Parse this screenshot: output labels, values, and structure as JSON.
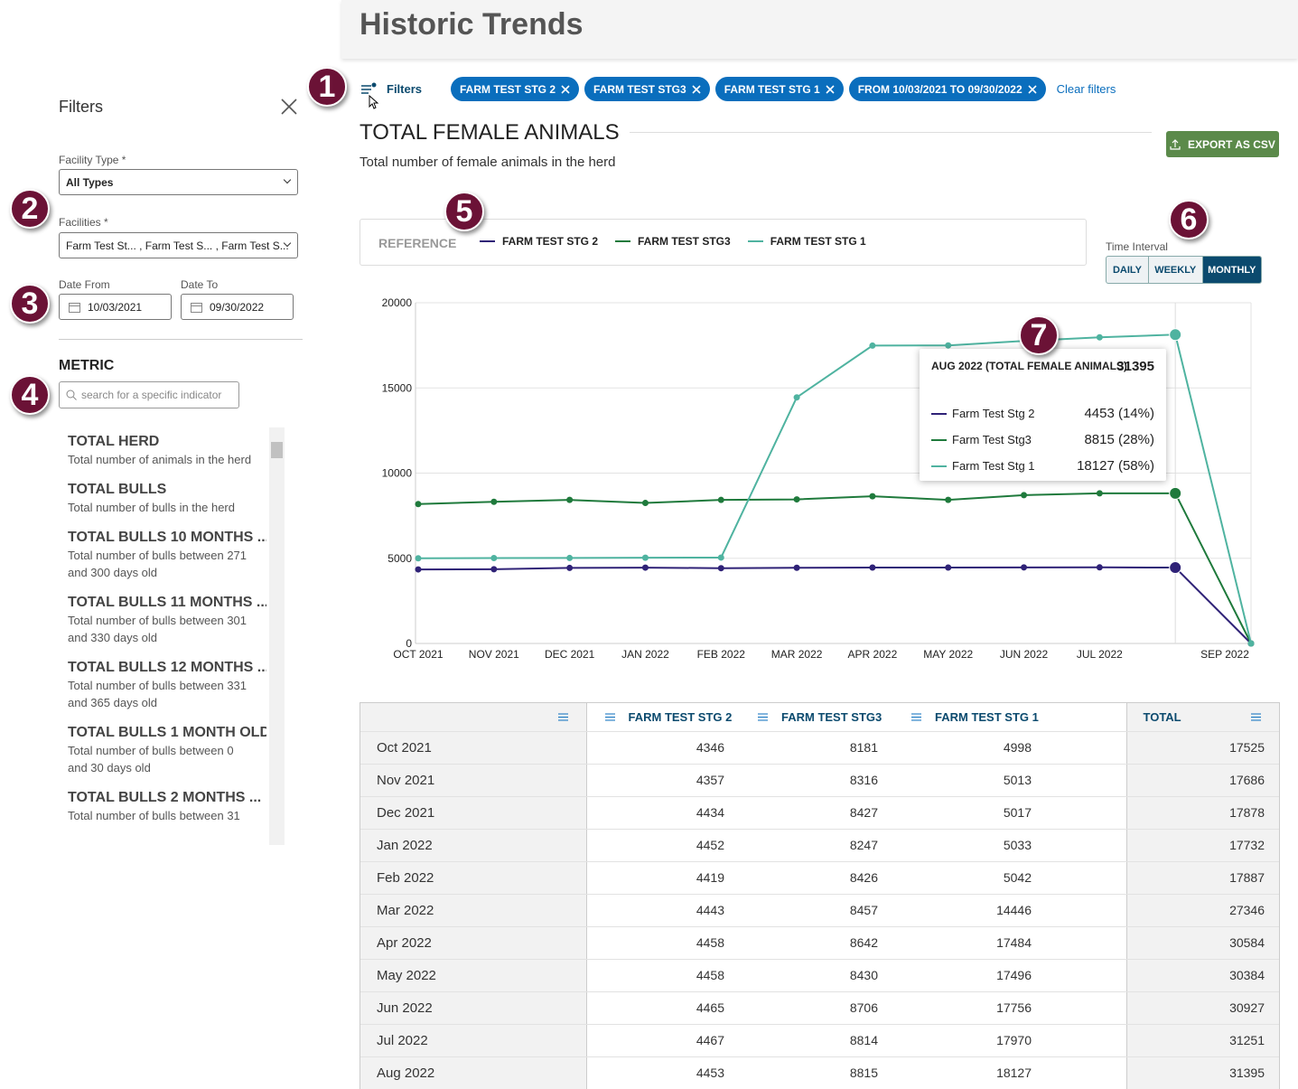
{
  "header": {
    "title": "Historic Trends"
  },
  "sidebar": {
    "title": "Filters",
    "facility_type_label": "Facility Type *",
    "facility_type_value": "All Types",
    "facilities_label": "Facilities *",
    "facilities_value": "Farm Test St... , Farm Test S... , Farm Test S...",
    "date_from_label": "Date From",
    "date_from": "10/03/2021",
    "date_to_label": "Date To",
    "date_to": "09/30/2022",
    "metric_title": "METRIC",
    "search_placeholder": "search for a specific indicator",
    "metrics": [
      {
        "name": "TOTAL HERD",
        "description": "Total number of animals in the herd"
      },
      {
        "name": "TOTAL BULLS",
        "description": "Total number of bulls in the herd"
      },
      {
        "name": "TOTAL BULLS 10 MONTHS ...",
        "description": "Total number of bulls between 271 and 300 days old"
      },
      {
        "name": "TOTAL BULLS 11 MONTHS ...",
        "description": "Total number of bulls between 301 and 330 days old"
      },
      {
        "name": "TOTAL BULLS 12 MONTHS ...",
        "description": "Total number of bulls between 331 and 365 days old"
      },
      {
        "name": "TOTAL BULLS 1 MONTH OLD",
        "description": "Total number of bulls between 0 and 30 days old"
      },
      {
        "name": "TOTAL BULLS 2 MONTHS ...",
        "description": "Total number of bulls between 31"
      }
    ]
  },
  "callouts": [
    "1",
    "2",
    "3",
    "4",
    "5",
    "6",
    "7"
  ],
  "filter_bar": {
    "label": "Filters",
    "chips": [
      "FARM TEST STG 2",
      "FARM TEST STG3",
      "FARM TEST STG 1",
      "FROM 10/03/2021 TO 09/30/2022"
    ],
    "clear": "Clear filters"
  },
  "section": {
    "title": "TOTAL FEMALE ANIMALS",
    "subtitle": "Total number of female animals in the herd",
    "export": "EXPORT AS CSV"
  },
  "time_interval": {
    "label": "Time Interval",
    "options": [
      "DAILY",
      "WEEKLY",
      "MONTHLY"
    ]
  },
  "chart_data": {
    "type": "line",
    "legend_title": "REFERENCE",
    "categories": [
      "OCT 2021",
      "NOV 2021",
      "DEC 2021",
      "JAN 2022",
      "FEB 2022",
      "MAR 2022",
      "APR 2022",
      "MAY 2022",
      "JUN 2022",
      "JUL 2022",
      null,
      "SEP 2022"
    ],
    "series": [
      {
        "name": "FARM TEST STG 2",
        "color": "#2f2277",
        "values": [
          4346,
          4357,
          4434,
          4452,
          4419,
          4443,
          4458,
          4458,
          4465,
          4467,
          4453,
          0
        ]
      },
      {
        "name": "FARM TEST STG3",
        "color": "#1f7a3c",
        "values": [
          8181,
          8316,
          8427,
          8247,
          8426,
          8457,
          8642,
          8430,
          8706,
          8814,
          8815,
          0
        ]
      },
      {
        "name": "FARM TEST STG 1",
        "color": "#4fb3a0",
        "values": [
          4998,
          5013,
          5017,
          5033,
          5042,
          14446,
          17484,
          17496,
          17756,
          17970,
          18127,
          0
        ]
      }
    ],
    "ylim": [
      0,
      20000
    ],
    "yticks": [
      0,
      5000,
      10000,
      15000,
      20000
    ],
    "grid": true,
    "tooltip": {
      "title": "AUG 2022 (TOTAL FEMALE ANIMALS)",
      "total": 31395,
      "items": [
        {
          "name": "Farm Test Stg 2",
          "label": "4453 (14%)"
        },
        {
          "name": "Farm Test Stg3",
          "label": "8815 (28%)"
        },
        {
          "name": "Farm Test Stg 1",
          "label": "18127 (58%)"
        }
      ]
    }
  },
  "table": {
    "columns": [
      "FARM TEST STG 2",
      "FARM TEST STG3",
      "FARM TEST STG 1",
      "TOTAL"
    ],
    "rows": [
      [
        "Oct 2021",
        4346,
        8181,
        4998,
        17525
      ],
      [
        "Nov 2021",
        4357,
        8316,
        5013,
        17686
      ],
      [
        "Dec 2021",
        4434,
        8427,
        5017,
        17878
      ],
      [
        "Jan 2022",
        4452,
        8247,
        5033,
        17732
      ],
      [
        "Feb 2022",
        4419,
        8426,
        5042,
        17887
      ],
      [
        "Mar 2022",
        4443,
        8457,
        14446,
        27346
      ],
      [
        "Apr 2022",
        4458,
        8642,
        17484,
        30584
      ],
      [
        "May 2022",
        4458,
        8430,
        17496,
        30384
      ],
      [
        "Jun 2022",
        4465,
        8706,
        17756,
        30927
      ],
      [
        "Jul 2022",
        4467,
        8814,
        17970,
        31251
      ],
      [
        "Aug 2022",
        4453,
        8815,
        18127,
        31395
      ]
    ]
  }
}
